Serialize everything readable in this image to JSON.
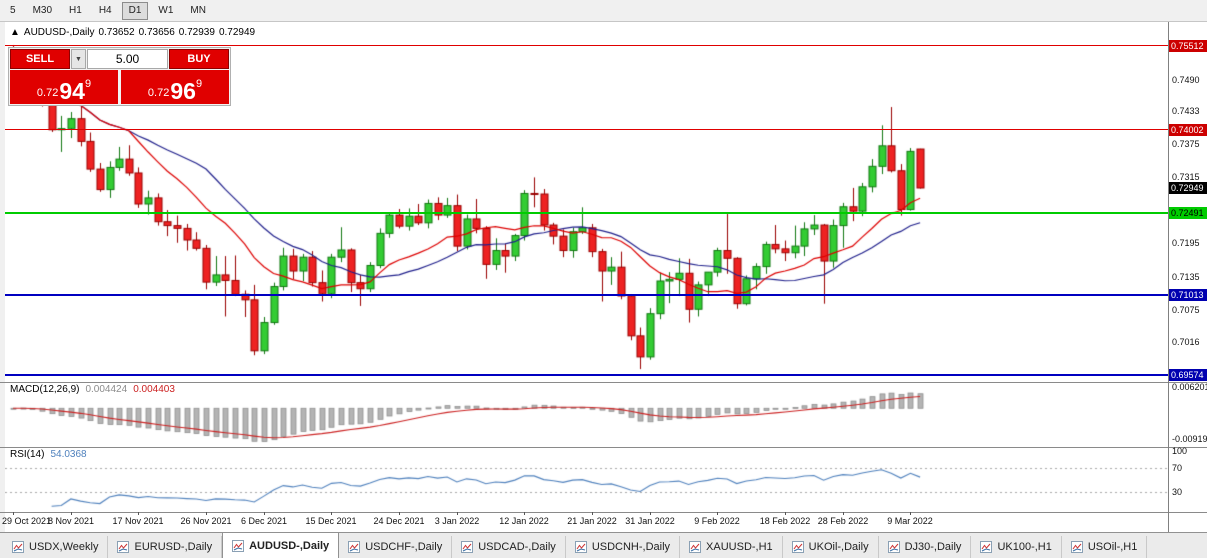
{
  "toolbar": {
    "timeframes": [
      "5",
      "M30",
      "H1",
      "H4",
      "D1",
      "W1",
      "MN"
    ],
    "active": "D1"
  },
  "chart_header": {
    "collapse_icon": "▲",
    "symbol": "AUDUSD-,Daily",
    "open": "0.73652",
    "high": "0.73656",
    "low": "0.72939",
    "close": "0.72949"
  },
  "trade_panel": {
    "sell_label": "SELL",
    "buy_label": "BUY",
    "volume": "5.00",
    "sell_price": {
      "prefix": "0.72",
      "big": "94",
      "sup": "9"
    },
    "buy_price": {
      "prefix": "0.72",
      "big": "96",
      "sup": "9"
    }
  },
  "price_axis": {
    "ticks": [
      {
        "label": "0.7490",
        "value": 0.749
      },
      {
        "label": "0.7433",
        "value": 0.7433
      },
      {
        "label": "0.7375",
        "value": 0.7375
      },
      {
        "label": "0.7315",
        "value": 0.7315
      },
      {
        "label": "0.7195",
        "value": 0.7195
      },
      {
        "label": "0.7135",
        "value": 0.7135
      },
      {
        "label": "0.7075",
        "value": 0.7075
      },
      {
        "label": "0.7016",
        "value": 0.7016
      }
    ],
    "current": {
      "label": "0.72949",
      "value": 0.72949,
      "bg": "#000000",
      "fg": "#ffffff"
    }
  },
  "levels": [
    {
      "label": "0.75512",
      "value": 0.75512,
      "line": "#e00000",
      "badge_bg": "#cc0000",
      "badge_fg": "#ffffff",
      "thickness": 1
    },
    {
      "label": "0.74002",
      "value": 0.74002,
      "line": "#e00000",
      "badge_bg": "#cc0000",
      "badge_fg": "#ffffff",
      "thickness": 1
    },
    {
      "label": "0.72491",
      "value": 0.72491,
      "line": "#00cc00",
      "badge_bg": "#00cc00",
      "badge_fg": "#000000",
      "thickness": 2
    },
    {
      "label": "0.71013",
      "value": 0.71013,
      "line": "#0000c0",
      "badge_bg": "#0000b0",
      "badge_fg": "#ffffff",
      "thickness": 2
    },
    {
      "label": "0.69574",
      "value": 0.69574,
      "line": "#0000c0",
      "badge_bg": "#0000b0",
      "badge_fg": "#ffffff",
      "thickness": 2
    }
  ],
  "macd_panel": {
    "name": "MACD(12,26,9)",
    "value_main": "0.004424",
    "value_signal": "0.004403",
    "axis": [
      {
        "label": "0.006201",
        "value": 0.006201
      },
      {
        "label": "-0.00919",
        "value": -0.00919
      }
    ]
  },
  "rsi_panel": {
    "name": "RSI(14)",
    "value": "54.0368",
    "axis": [
      {
        "label": "100",
        "value": 100
      },
      {
        "label": "70",
        "value": 70
      },
      {
        "label": "30",
        "value": 30
      }
    ],
    "levels": [
      70,
      30
    ]
  },
  "tabs": {
    "items": [
      "USDX,Weekly",
      "EURUSD-,Daily",
      "AUDUSD-,Daily",
      "USDCHF-,Daily",
      "USDCAD-,Daily",
      "USDCNH-,Daily",
      "XAUUSD-,H1",
      "UKOil-,Daily",
      "DJ30-,Daily",
      "UK100-,H1",
      "USOil-,H1"
    ],
    "active_index": 2
  },
  "chart_data": {
    "type": "candlestick",
    "title": "AUDUSD-,Daily",
    "symbol": "AUDUSD-",
    "timeframe": "Daily",
    "y_range": [
      0.69447,
      0.75945
    ],
    "up_color": "#33cc33",
    "up_border": "#117711",
    "down_color": "#ee2222",
    "down_border": "#990000",
    "overlays": [
      {
        "name": "ma-slow",
        "type": "sma",
        "period": 21,
        "color": "#20208c"
      },
      {
        "name": "ma-fast",
        "type": "sma",
        "period": 13,
        "color": "#dd0000"
      }
    ],
    "macd": {
      "fast": 12,
      "slow": 26,
      "signal": 9,
      "range": [
        -0.0115,
        0.0075
      ],
      "hist_color": "#b4b4b4",
      "signal_color": "#cc2222"
    },
    "rsi": {
      "period": 14,
      "range": [
        0,
        100
      ],
      "color": "#4f81bd"
    },
    "x_ticks": [
      {
        "label": "29 Oct 2021",
        "index": 0
      },
      {
        "label": "8 Nov 2021",
        "index": 6
      },
      {
        "label": "17 Nov 2021",
        "index": 13
      },
      {
        "label": "26 Nov 2021",
        "index": 20
      },
      {
        "label": "6 Dec 2021",
        "index": 26
      },
      {
        "label": "15 Dec 2021",
        "index": 33
      },
      {
        "label": "24 Dec 2021",
        "index": 40
      },
      {
        "label": "3 Jan 2022",
        "index": 46
      },
      {
        "label": "12 Jan 2022",
        "index": 53
      },
      {
        "label": "21 Jan 2022",
        "index": 60
      },
      {
        "label": "31 Jan 2022",
        "index": 66
      },
      {
        "label": "9 Feb 2022",
        "index": 73
      },
      {
        "label": "18 Feb 2022",
        "index": 80
      },
      {
        "label": "28 Feb 2022",
        "index": 86
      },
      {
        "label": "9 Mar 2022",
        "index": 93
      }
    ],
    "candles": [
      [
        0.7545,
        0.7552,
        0.7498,
        0.7518
      ],
      [
        0.7518,
        0.7535,
        0.7492,
        0.7524
      ],
      [
        0.7524,
        0.7535,
        0.7452,
        0.7463
      ],
      [
        0.7463,
        0.7488,
        0.7442,
        0.7448
      ],
      [
        0.7448,
        0.747,
        0.7396,
        0.74
      ],
      [
        0.74,
        0.7425,
        0.736,
        0.7402
      ],
      [
        0.7402,
        0.7432,
        0.7385,
        0.742
      ],
      [
        0.742,
        0.7444,
        0.737,
        0.7379
      ],
      [
        0.7379,
        0.7395,
        0.7324,
        0.7329
      ],
      [
        0.7329,
        0.734,
        0.7288,
        0.7292
      ],
      [
        0.7292,
        0.7343,
        0.7277,
        0.7332
      ],
      [
        0.7332,
        0.7369,
        0.7326,
        0.7347
      ],
      [
        0.7347,
        0.7372,
        0.7317,
        0.7322
      ],
      [
        0.7322,
        0.7332,
        0.7259,
        0.7266
      ],
      [
        0.7266,
        0.729,
        0.7247,
        0.7277
      ],
      [
        0.7277,
        0.7285,
        0.7227,
        0.7234
      ],
      [
        0.7234,
        0.7255,
        0.7208,
        0.7227
      ],
      [
        0.7227,
        0.7245,
        0.7196,
        0.7222
      ],
      [
        0.7222,
        0.723,
        0.7182,
        0.7201
      ],
      [
        0.7201,
        0.7215,
        0.7182,
        0.7186
      ],
      [
        0.7186,
        0.7192,
        0.7112,
        0.7125
      ],
      [
        0.7125,
        0.7172,
        0.7118,
        0.7138
      ],
      [
        0.7138,
        0.7172,
        0.7063,
        0.7128
      ],
      [
        0.7128,
        0.7173,
        0.71,
        0.7103
      ],
      [
        0.7103,
        0.711,
        0.7062,
        0.7093
      ],
      [
        0.7093,
        0.712,
        0.6993,
        0.7001
      ],
      [
        0.7001,
        0.7062,
        0.6995,
        0.7052
      ],
      [
        0.7052,
        0.7124,
        0.7048,
        0.7117
      ],
      [
        0.7117,
        0.7187,
        0.711,
        0.7172
      ],
      [
        0.7172,
        0.7185,
        0.713,
        0.7145
      ],
      [
        0.7145,
        0.7176,
        0.7127,
        0.717
      ],
      [
        0.717,
        0.7181,
        0.7117,
        0.7124
      ],
      [
        0.7124,
        0.7146,
        0.709,
        0.7104
      ],
      [
        0.7104,
        0.7176,
        0.7096,
        0.717
      ],
      [
        0.717,
        0.7224,
        0.7161,
        0.7183
      ],
      [
        0.7183,
        0.7186,
        0.7107,
        0.7124
      ],
      [
        0.7124,
        0.7138,
        0.7082,
        0.7113
      ],
      [
        0.7113,
        0.7161,
        0.7107,
        0.7155
      ],
      [
        0.7155,
        0.7222,
        0.715,
        0.7213
      ],
      [
        0.7213,
        0.725,
        0.7205,
        0.7246
      ],
      [
        0.7246,
        0.7257,
        0.7222,
        0.7226
      ],
      [
        0.7226,
        0.7258,
        0.7218,
        0.7244
      ],
      [
        0.7244,
        0.7266,
        0.7228,
        0.7232
      ],
      [
        0.7232,
        0.7274,
        0.7222,
        0.7267
      ],
      [
        0.7267,
        0.7278,
        0.7237,
        0.7246
      ],
      [
        0.7246,
        0.7277,
        0.7241,
        0.7263
      ],
      [
        0.7263,
        0.7283,
        0.7181,
        0.719
      ],
      [
        0.719,
        0.7247,
        0.7184,
        0.7239
      ],
      [
        0.7239,
        0.7275,
        0.7213,
        0.7222
      ],
      [
        0.7222,
        0.7226,
        0.7131,
        0.7157
      ],
      [
        0.7157,
        0.7204,
        0.7147,
        0.7182
      ],
      [
        0.7182,
        0.7194,
        0.7142,
        0.7172
      ],
      [
        0.7172,
        0.7212,
        0.7163,
        0.7209
      ],
      [
        0.7209,
        0.7291,
        0.72,
        0.7285
      ],
      [
        0.7285,
        0.7314,
        0.726,
        0.7284
      ],
      [
        0.7284,
        0.7293,
        0.7218,
        0.7228
      ],
      [
        0.7228,
        0.7232,
        0.7193,
        0.7208
      ],
      [
        0.7208,
        0.722,
        0.717,
        0.7182
      ],
      [
        0.7182,
        0.7223,
        0.7169,
        0.7216
      ],
      [
        0.7216,
        0.726,
        0.7212,
        0.7223
      ],
      [
        0.7223,
        0.723,
        0.717,
        0.718
      ],
      [
        0.718,
        0.7185,
        0.709,
        0.7145
      ],
      [
        0.7145,
        0.717,
        0.712,
        0.7152
      ],
      [
        0.7152,
        0.718,
        0.7094,
        0.71
      ],
      [
        0.71,
        0.7102,
        0.702,
        0.7028
      ],
      [
        0.7028,
        0.7043,
        0.6968,
        0.699
      ],
      [
        0.699,
        0.7078,
        0.6985,
        0.7068
      ],
      [
        0.7068,
        0.7142,
        0.7058,
        0.7127
      ],
      [
        0.7127,
        0.7143,
        0.7087,
        0.713
      ],
      [
        0.713,
        0.7168,
        0.71,
        0.7141
      ],
      [
        0.7141,
        0.7167,
        0.7052,
        0.7076
      ],
      [
        0.7076,
        0.7126,
        0.7063,
        0.712
      ],
      [
        0.712,
        0.7143,
        0.71,
        0.7143
      ],
      [
        0.7143,
        0.7187,
        0.7135,
        0.7182
      ],
      [
        0.7182,
        0.7249,
        0.714,
        0.7168
      ],
      [
        0.7168,
        0.717,
        0.7077,
        0.7086
      ],
      [
        0.7086,
        0.7137,
        0.7083,
        0.7131
      ],
      [
        0.7131,
        0.7159,
        0.7112,
        0.7153
      ],
      [
        0.7153,
        0.7198,
        0.714,
        0.7193
      ],
      [
        0.7193,
        0.7228,
        0.7177,
        0.7185
      ],
      [
        0.7185,
        0.72,
        0.7163,
        0.7178
      ],
      [
        0.7178,
        0.7227,
        0.7168,
        0.719
      ],
      [
        0.719,
        0.7233,
        0.7172,
        0.7221
      ],
      [
        0.7221,
        0.7246,
        0.721,
        0.7228
      ],
      [
        0.7228,
        0.723,
        0.7086,
        0.7163
      ],
      [
        0.7163,
        0.7238,
        0.7151,
        0.7227
      ],
      [
        0.7227,
        0.7268,
        0.7187,
        0.7261
      ],
      [
        0.7261,
        0.7295,
        0.7235,
        0.7253
      ],
      [
        0.7253,
        0.7304,
        0.7244,
        0.7297
      ],
      [
        0.7297,
        0.7347,
        0.7287,
        0.7334
      ],
      [
        0.7334,
        0.7408,
        0.732,
        0.7371
      ],
      [
        0.7371,
        0.7441,
        0.7323,
        0.7326
      ],
      [
        0.7326,
        0.7338,
        0.7245,
        0.7256
      ],
      [
        0.7256,
        0.7367,
        0.7254,
        0.7361
      ],
      [
        0.73652,
        0.73656,
        0.72939,
        0.72949
      ]
    ]
  }
}
